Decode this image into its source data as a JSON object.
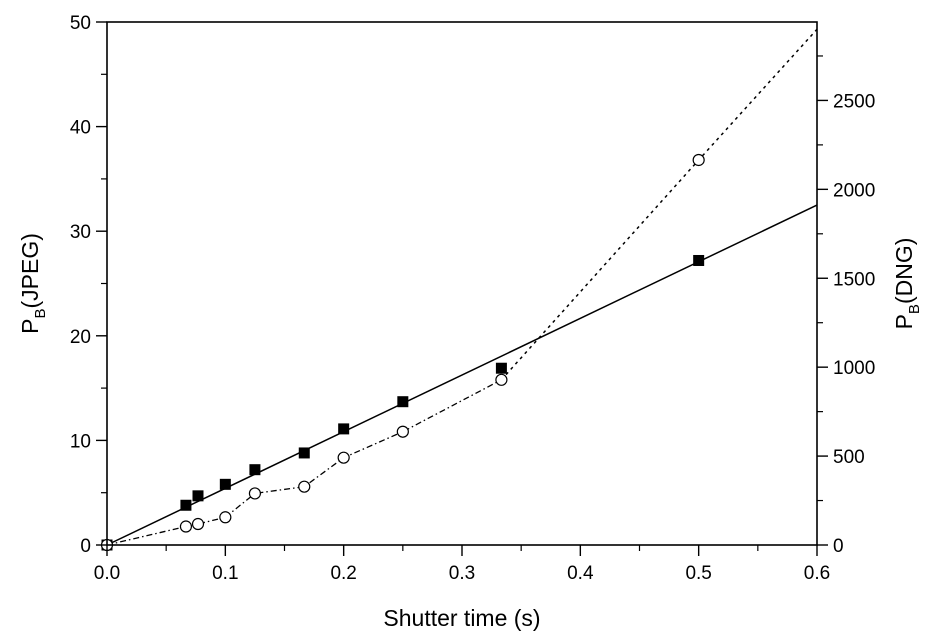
{
  "chart_data": {
    "type": "scatter",
    "xlabel": "Shutter time (s)",
    "ylabel_left": {
      "main": "P",
      "sub": "B",
      "suffix": "(JPEG)"
    },
    "ylabel_right": {
      "main": "P",
      "sub": "B",
      "suffix": "(DNG)"
    },
    "xlim": [
      0,
      0.6
    ],
    "ylim_left": [
      0,
      50
    ],
    "ylim_right": [
      0,
      2941
    ],
    "x_ticks": [
      "0.0",
      "0.1",
      "0.2",
      "0.3",
      "0.4",
      "0.5",
      "0.6"
    ],
    "x_tick_values": [
      0,
      0.1,
      0.2,
      0.3,
      0.4,
      0.5,
      0.6
    ],
    "y_left_ticks": [
      "0",
      "10",
      "20",
      "30",
      "40",
      "50"
    ],
    "y_left_tick_values": [
      0,
      10,
      20,
      30,
      40,
      50
    ],
    "y_right_ticks": [
      "0",
      "500",
      "1000",
      "1500",
      "2000",
      "2500"
    ],
    "y_right_tick_values": [
      0,
      500,
      1000,
      1500,
      2000,
      2500
    ],
    "grid": false,
    "series": [
      {
        "axis": "left",
        "marker": "filled-square",
        "x": [
          0,
          0.0667,
          0.0769,
          0.1,
          0.125,
          0.1667,
          0.2,
          0.25,
          0.3333,
          0.5
        ],
        "y": [
          0,
          3.8,
          4.7,
          5.8,
          7.2,
          8.8,
          11.1,
          13.7,
          16.9,
          27.2
        ]
      },
      {
        "axis": "right",
        "marker": "open-circle",
        "x": [
          0,
          0.0667,
          0.0769,
          0.1,
          0.125,
          0.1667,
          0.2,
          0.25,
          0.3333,
          0.5
        ],
        "y": [
          0,
          104,
          118,
          156,
          290,
          328,
          491,
          637,
          929,
          2165
        ]
      }
    ],
    "fits": [
      {
        "axis": "left",
        "style": "solid",
        "x": [
          0,
          0.6
        ],
        "y": [
          0,
          32.5
        ]
      },
      {
        "axis": "right",
        "style": "dotted",
        "x": [
          0.3333,
          0.5,
          0.6
        ],
        "y": [
          929,
          2165,
          2900
        ]
      }
    ],
    "connectors": [
      {
        "axis": "right",
        "style": "dash-dot",
        "series_index": 1,
        "upto_index": 8
      }
    ]
  }
}
